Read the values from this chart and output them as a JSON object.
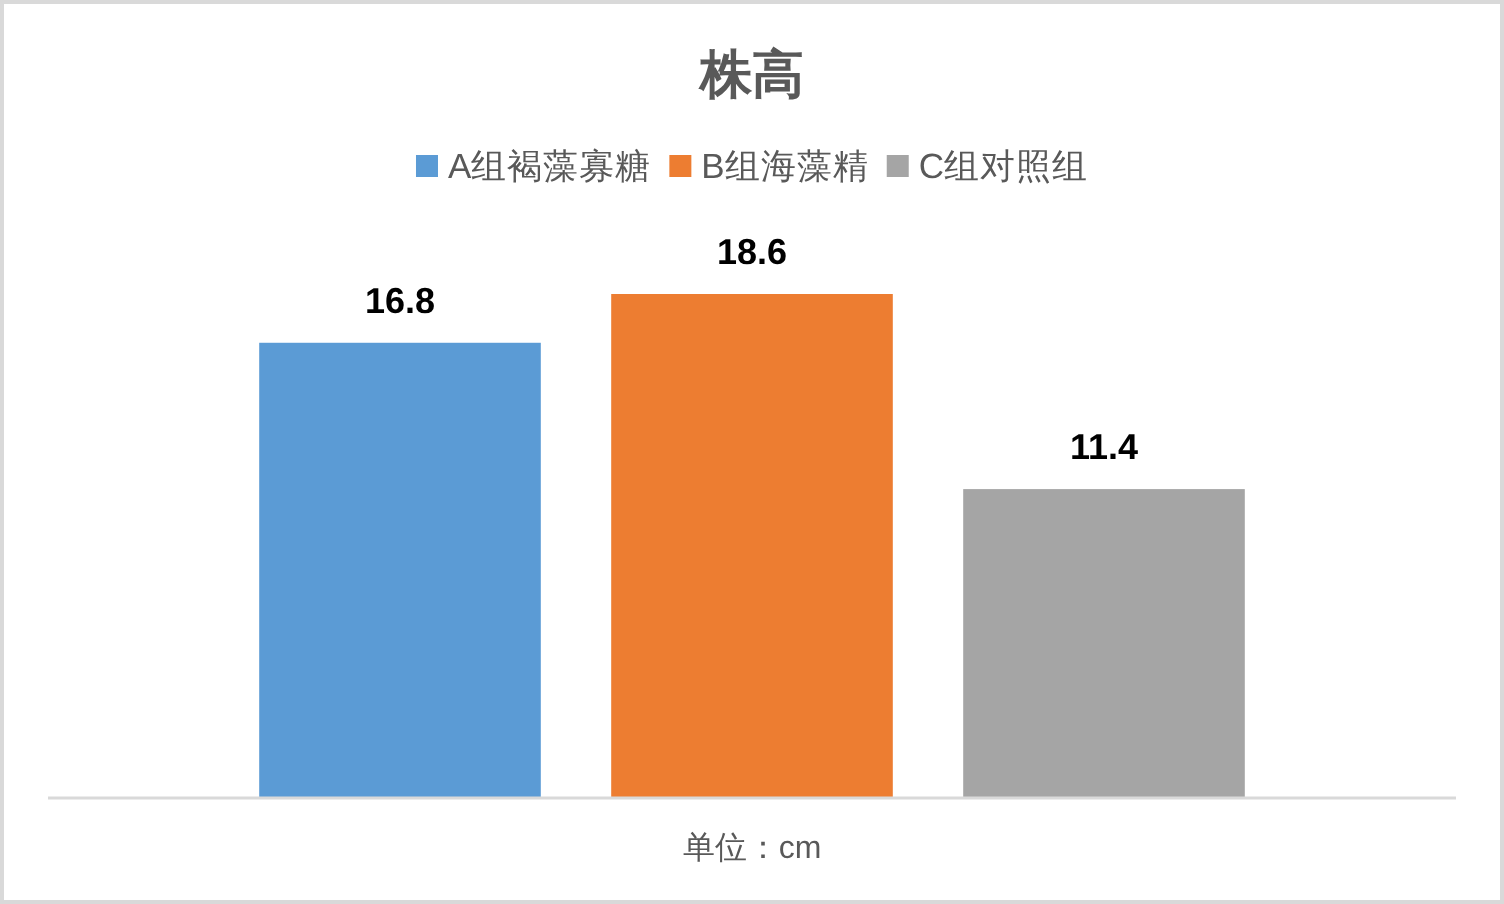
{
  "chart_data": {
    "type": "bar",
    "title": "株高",
    "xlabel": "单位：cm",
    "categories": [
      null,
      null,
      null
    ],
    "stacked": true,
    "series": [
      {
        "name": "A组褐藻寡糖",
        "color": "#5b9bd5",
        "values": [
          16.8,
          null,
          null
        ]
      },
      {
        "name": "B组海藻精",
        "color": "#ed7d31",
        "values": [
          null,
          18.6,
          null
        ]
      },
      {
        "name": "C组对照组",
        "color": "#a5a5a5",
        "values": [
          null,
          null,
          11.4
        ]
      }
    ],
    "data_labels": true,
    "legend": "top"
  }
}
